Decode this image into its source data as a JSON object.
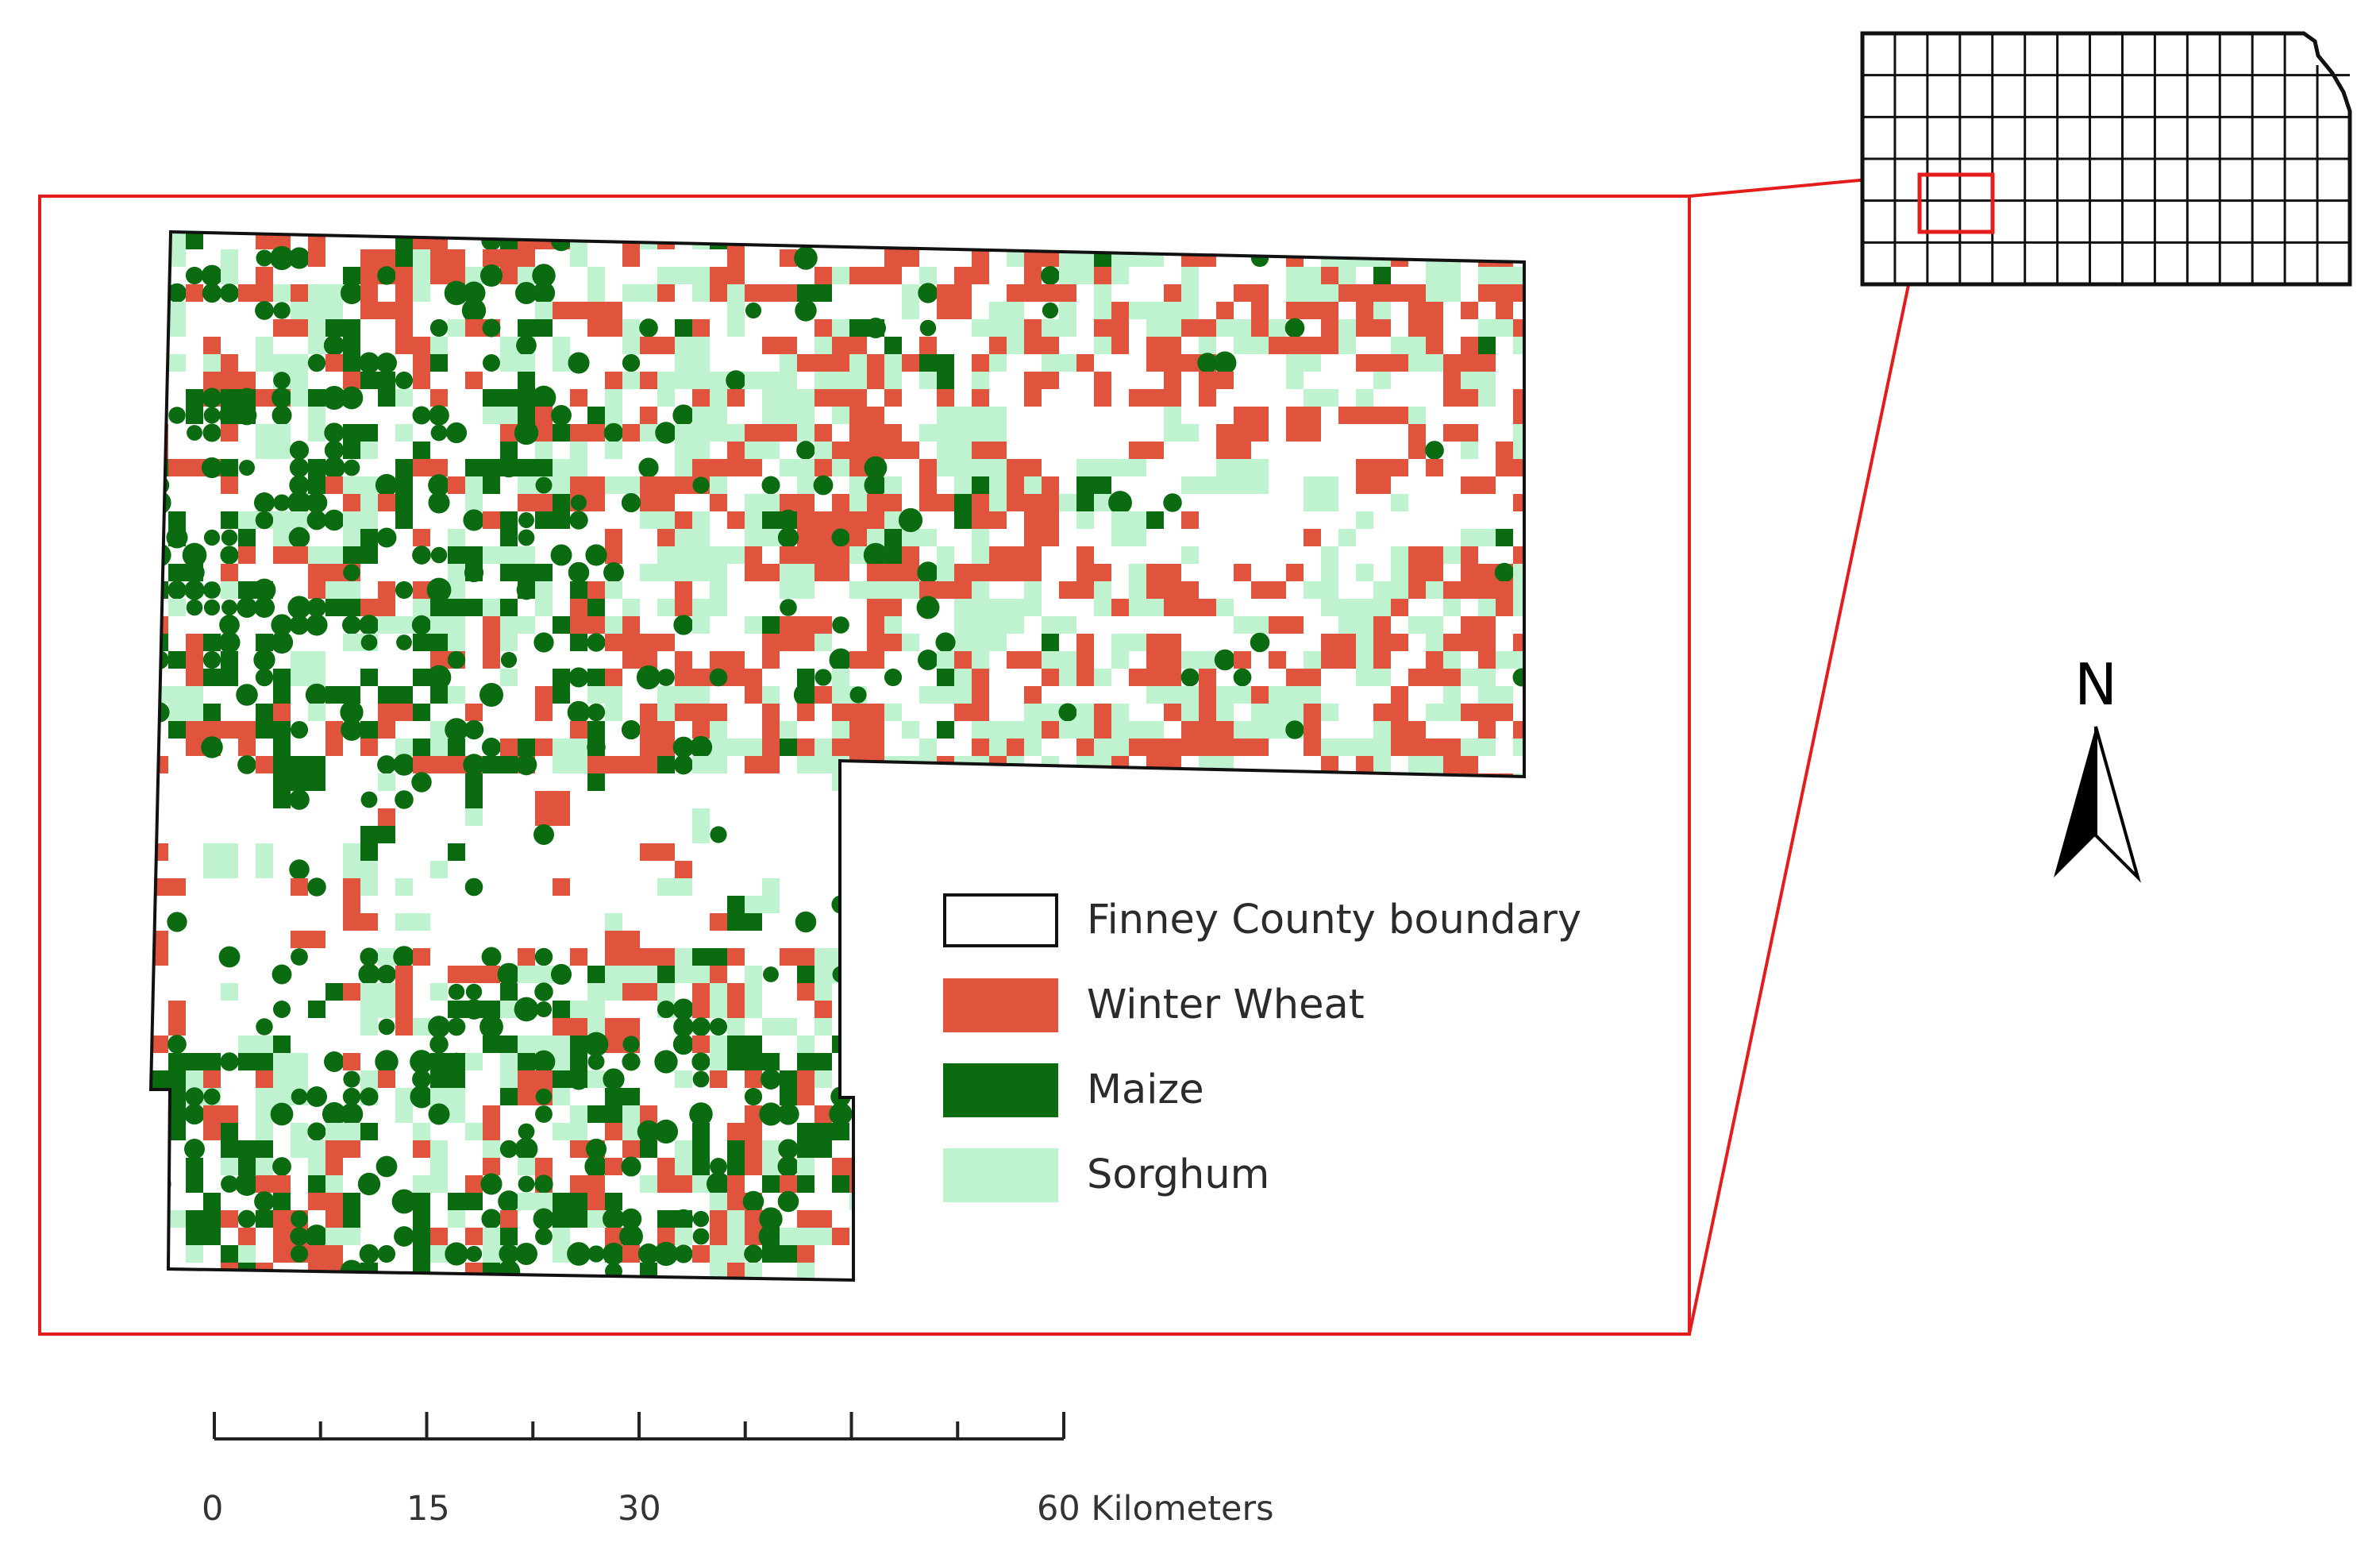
{
  "legend": {
    "items": [
      {
        "label": "Finney County boundary",
        "color": "#ffffff",
        "border": "#111111"
      },
      {
        "label": "Winter Wheat",
        "color": "#e0533d"
      },
      {
        "label": "Maize",
        "color": "#0a6b10"
      },
      {
        "label": "Sorghum",
        "color": "#bff2cf"
      }
    ]
  },
  "north_arrow": {
    "label": "N"
  },
  "scale_bar": {
    "ticks": [
      "0",
      "15",
      "30"
    ],
    "end_label": "60",
    "unit": "Kilometers"
  },
  "colors": {
    "inset_frame": "#e51c1c",
    "county_outline": "#111111",
    "winter_wheat": "#e0533d",
    "maize": "#0a6b10",
    "sorghum": "#bff2cf"
  }
}
